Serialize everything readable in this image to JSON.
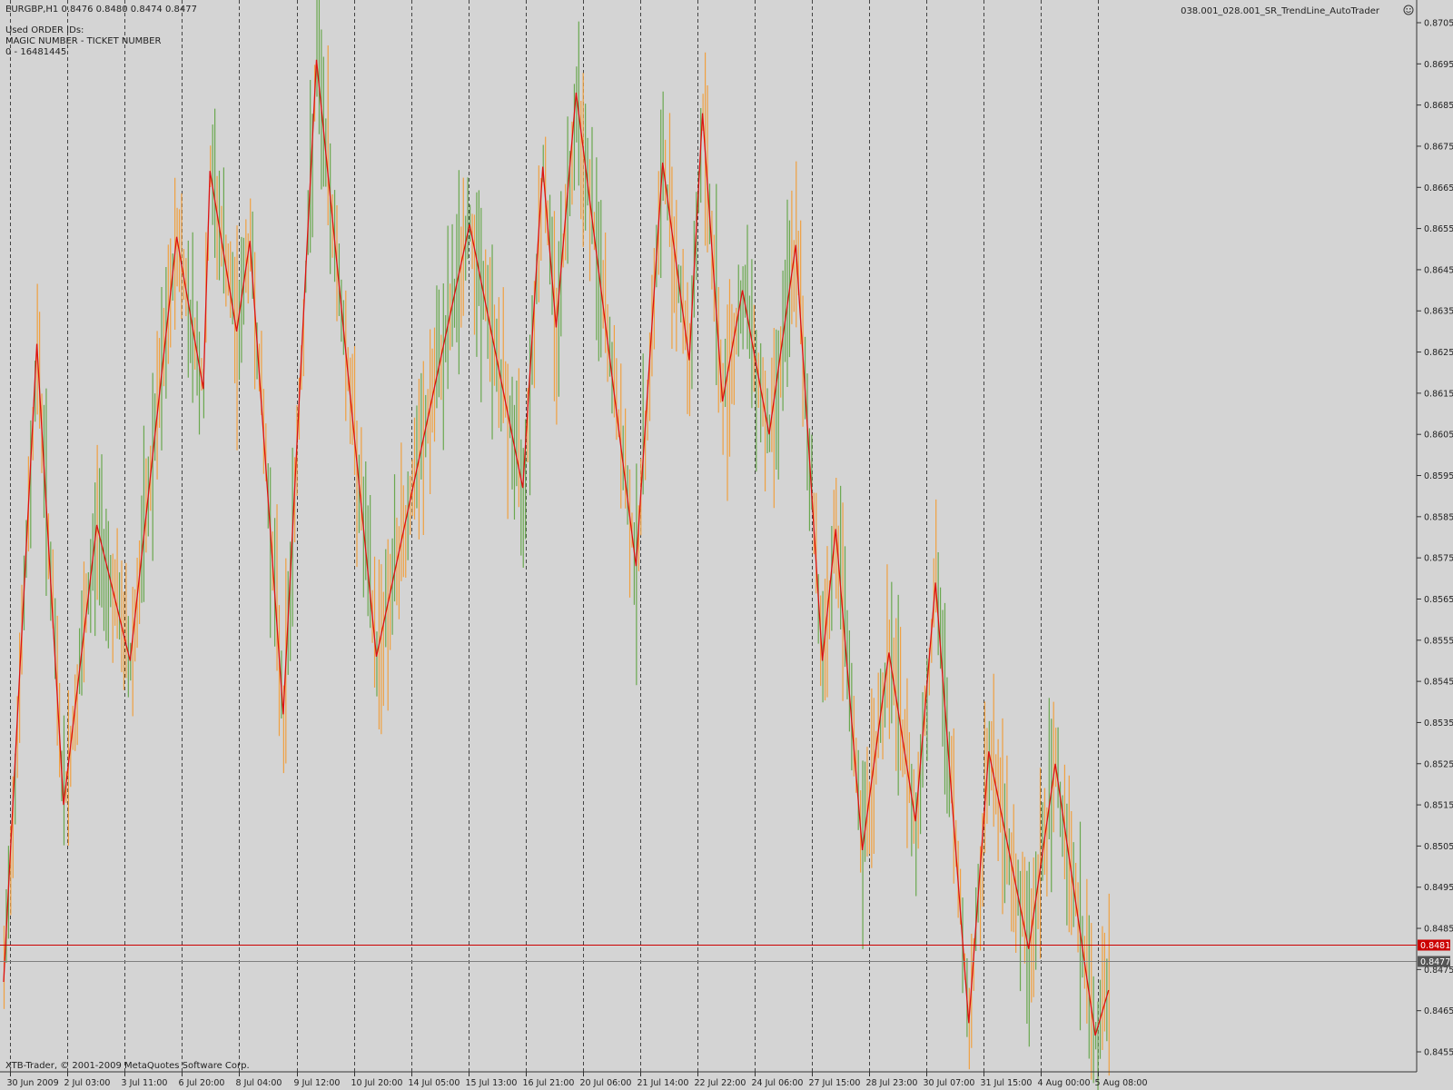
{
  "header": {
    "symbol_info": "EURGBP,H1  0.8476 0.8480 0.8474 0.8477",
    "order_ids_title": "Used ORDER IDs:",
    "order_ids_columns": "MAGIC NUMBER - TICKET NUMBER",
    "order_ids_row": "0 - 16481445",
    "expert_name": "038.001_028.001_SR_TrendLine_AutoTrader",
    "expert_icon": "smiley-icon"
  },
  "footer": {
    "copyright": "XTB-Trader, © 2001-2009 MetaQuotes Software Corp."
  },
  "colors": {
    "background": "#d4d4d4",
    "axis_line": "#333333",
    "bull_candle": "#6aa84f",
    "bear_candle": "#f0a040",
    "zigzag": "#dd1111",
    "price_line": "#808080",
    "level_line": "#cc0000",
    "period_separator": "#444444"
  },
  "chart_data": {
    "type": "line",
    "series": [
      {
        "name": "zigzag",
        "points": [
          [
            0,
            0.8472
          ],
          [
            5,
            0.8627
          ],
          [
            9,
            0.8515
          ],
          [
            14,
            0.8583
          ],
          [
            19,
            0.855
          ],
          [
            26,
            0.8653
          ],
          [
            30,
            0.8616
          ],
          [
            31,
            0.8669
          ],
          [
            35,
            0.863
          ],
          [
            37,
            0.8652
          ],
          [
            42,
            0.8537
          ],
          [
            47,
            0.8696
          ],
          [
            56,
            0.8551
          ],
          [
            70,
            0.8656
          ],
          [
            78,
            0.8592
          ],
          [
            81,
            0.867
          ],
          [
            83,
            0.8631
          ],
          [
            86,
            0.8688
          ],
          [
            95,
            0.8573
          ],
          [
            99,
            0.8671
          ],
          [
            103,
            0.8623
          ],
          [
            105,
            0.8683
          ],
          [
            108,
            0.8613
          ],
          [
            111,
            0.864
          ],
          [
            115,
            0.8605
          ],
          [
            119,
            0.8651
          ],
          [
            123,
            0.855
          ],
          [
            125,
            0.8582
          ],
          [
            129,
            0.8504
          ],
          [
            133,
            0.8552
          ],
          [
            137,
            0.8511
          ],
          [
            140,
            0.8569
          ],
          [
            145,
            0.8462
          ],
          [
            148,
            0.8528
          ],
          [
            154,
            0.848
          ],
          [
            158,
            0.8525
          ],
          [
            164,
            0.8459
          ],
          [
            166,
            0.847
          ]
        ]
      }
    ],
    "x_tick_labels": [
      "30 Jun 2009",
      "2 Jul 03:00",
      "3 Jul 11:00",
      "6 Jul 20:00",
      "8 Jul 04:00",
      "9 Jul 12:00",
      "10 Jul 20:00",
      "14 Jul 05:00",
      "15 Jul 13:00",
      "16 Jul 21:00",
      "20 Jul 06:00",
      "21 Jul 14:00",
      "22 Jul 22:00",
      "24 Jul 06:00",
      "27 Jul 15:00",
      "28 Jul 23:00",
      "30 Jul 07:00",
      "31 Jul 15:00",
      "4 Aug 00:00",
      "5 Aug 08:00"
    ],
    "y_tick_labels": [
      "0.8705",
      "0.8695",
      "0.8685",
      "0.8675",
      "0.8665",
      "0.8655",
      "0.8645",
      "0.8635",
      "0.8625",
      "0.8615",
      "0.8605",
      "0.8595",
      "0.8585",
      "0.8575",
      "0.8565",
      "0.8555",
      "0.8545",
      "0.8535",
      "0.8525",
      "0.8515",
      "0.8505",
      "0.8495",
      "0.8485",
      "0.8475",
      "0.8465",
      "0.8455"
    ],
    "y_range": [
      0.8452,
      0.8709
    ],
    "grid": false,
    "price_tags": [
      {
        "label": "0.8481",
        "value": 0.8481,
        "color": "#cc0000"
      },
      {
        "label": "0.8477",
        "value": 0.8477,
        "color": "#555555"
      }
    ],
    "separator_tags": [
      "30 Jun 2009",
      "2 Jul 03:00",
      "3 Jul 11:00",
      "6 Jul 20:00",
      "8 Jul 04:00",
      "9 Jul 12:00",
      "10 Jul 20:00",
      "14 Jul 05:00",
      "15 Jul 13:00",
      "16 Jul 21:00",
      "20 Jul 06:00",
      "21 Jul 14:00",
      "22 Jul 22:00",
      "24 Jul 06:00",
      "27 Jul 15:00",
      "28 Jul 23:00",
      "30 Jul 07:00",
      "31 Jul 15:00",
      "4 Aug 00:00",
      "5 Aug 08:00"
    ]
  }
}
